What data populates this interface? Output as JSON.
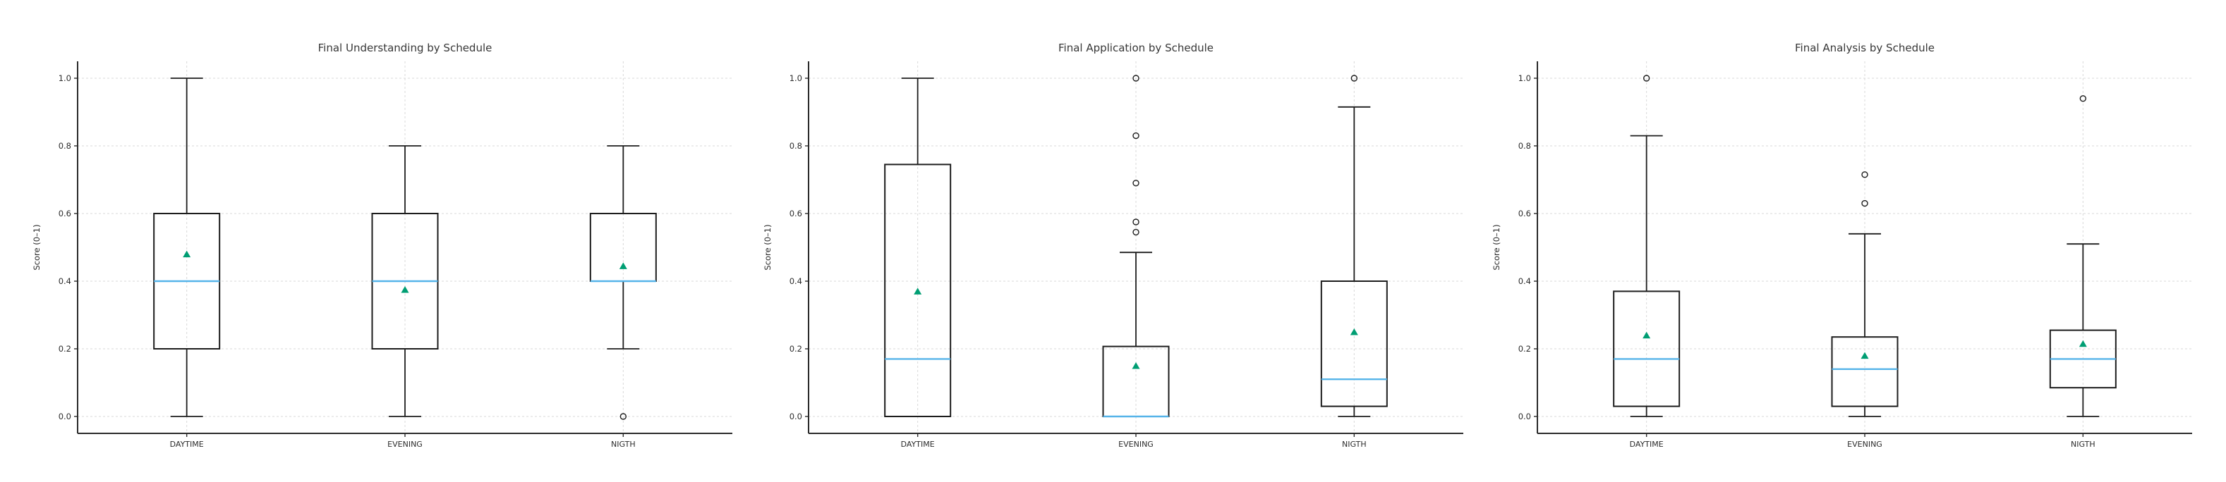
{
  "figure": {
    "background": "#ffffff"
  },
  "colors": {
    "median": "#56B4E9",
    "mean": "#009E73",
    "box_stroke": "#1d1d1d",
    "grid": "#d9d9d9",
    "spine": "#2b2b2b",
    "background": "#ffffff"
  },
  "chart_data": [
    {
      "type": "box",
      "title": "Final Understanding by Schedule",
      "xlabel": "",
      "ylabel": "Score (0–1)",
      "categories": [
        "DAYTIME",
        "EVENING",
        "NIGTH"
      ],
      "yticks": [
        0.0,
        0.2,
        0.4,
        0.6,
        0.8,
        1.0
      ],
      "ylim": [
        -0.05,
        1.05
      ],
      "grid": true,
      "legend": null,
      "mean_marker": "triangle",
      "boxes": [
        {
          "category": "DAYTIME",
          "whislo": 0.0,
          "q1": 0.2,
          "med": 0.4,
          "q3": 0.6,
          "whishi": 1.0,
          "mean": 0.48,
          "fliers": []
        },
        {
          "category": "EVENING",
          "whislo": 0.0,
          "q1": 0.2,
          "med": 0.4,
          "q3": 0.6,
          "whishi": 0.8,
          "mean": 0.375,
          "fliers": []
        },
        {
          "category": "NIGTH",
          "whislo": 0.2,
          "q1": 0.4,
          "med": 0.4,
          "q3": 0.6,
          "whishi": 0.8,
          "mean": 0.445,
          "fliers": [
            0.0
          ]
        }
      ]
    },
    {
      "type": "box",
      "title": "Final Application by Schedule",
      "xlabel": "",
      "ylabel": "Score (0–1)",
      "categories": [
        "DAYTIME",
        "EVENING",
        "NIGTH"
      ],
      "yticks": [
        0.0,
        0.2,
        0.4,
        0.6,
        0.8,
        1.0
      ],
      "ylim": [
        -0.05,
        1.05
      ],
      "grid": true,
      "legend": null,
      "mean_marker": "triangle",
      "boxes": [
        {
          "category": "DAYTIME",
          "whislo": 0.0,
          "q1": 0.0,
          "med": 0.17,
          "q3": 0.745,
          "whishi": 1.0,
          "mean": 0.37,
          "fliers": []
        },
        {
          "category": "EVENING",
          "whislo": 0.0,
          "q1": 0.0,
          "med": 0.0,
          "q3": 0.207,
          "whishi": 0.485,
          "mean": 0.15,
          "fliers": [
            0.545,
            0.575,
            0.69,
            0.83,
            1.0
          ]
        },
        {
          "category": "NIGTH",
          "whislo": 0.0,
          "q1": 0.03,
          "med": 0.11,
          "q3": 0.4,
          "whishi": 0.915,
          "mean": 0.25,
          "fliers": [
            1.0
          ]
        }
      ]
    },
    {
      "type": "box",
      "title": "Final Analysis by Schedule",
      "xlabel": "",
      "ylabel": "Score (0–1)",
      "categories": [
        "DAYTIME",
        "EVENING",
        "NIGTH"
      ],
      "yticks": [
        0.0,
        0.2,
        0.4,
        0.6,
        0.8,
        1.0
      ],
      "ylim": [
        -0.05,
        1.05
      ],
      "grid": true,
      "legend": null,
      "mean_marker": "triangle",
      "boxes": [
        {
          "category": "DAYTIME",
          "whislo": 0.0,
          "q1": 0.03,
          "med": 0.17,
          "q3": 0.37,
          "whishi": 0.83,
          "mean": 0.24,
          "fliers": [
            1.0
          ]
        },
        {
          "category": "EVENING",
          "whislo": 0.0,
          "q1": 0.03,
          "med": 0.14,
          "q3": 0.235,
          "whishi": 0.54,
          "mean": 0.18,
          "fliers": [
            0.63,
            0.715
          ]
        },
        {
          "category": "NIGTH",
          "whislo": 0.0,
          "q1": 0.085,
          "med": 0.17,
          "q3": 0.255,
          "whishi": 0.51,
          "mean": 0.215,
          "fliers": [
            0.94
          ]
        }
      ]
    }
  ]
}
